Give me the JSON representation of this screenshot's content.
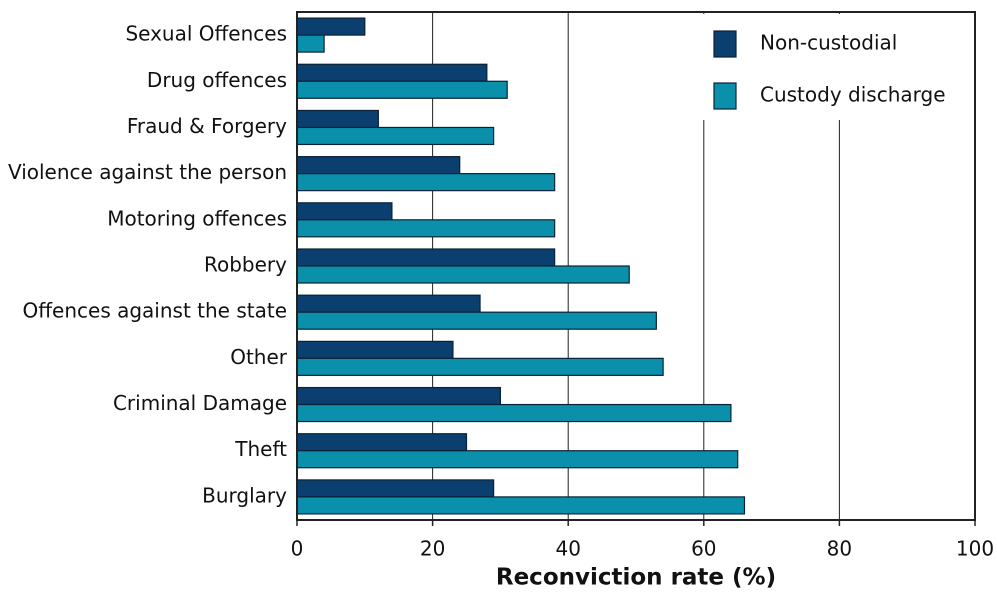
{
  "chart_data": {
    "type": "bar",
    "orientation": "horizontal",
    "x_label": "Reconviction rate (%)",
    "categories": [
      "Sexual Offences",
      "Drug offences",
      "Fraud & Forgery",
      "Violence against the person",
      "Motoring offences",
      "Robbery",
      "Offences against the state",
      "Other",
      "Criminal Damage",
      "Theft",
      "Burglary"
    ],
    "series": [
      {
        "name": "Non-custodial",
        "color": "#0b3f6f",
        "values": [
          10,
          28,
          12,
          24,
          14,
          38,
          27,
          23,
          30,
          25,
          29
        ]
      },
      {
        "name": "Custody discharge",
        "color": "#0a90aa",
        "values": [
          4,
          31,
          29,
          38,
          38,
          49,
          53,
          54,
          64,
          65,
          66
        ]
      }
    ],
    "xlim": [
      0,
      100
    ],
    "xticks": [
      0,
      20,
      40,
      60,
      80,
      100
    ],
    "grid": true,
    "legend": "top-right"
  }
}
